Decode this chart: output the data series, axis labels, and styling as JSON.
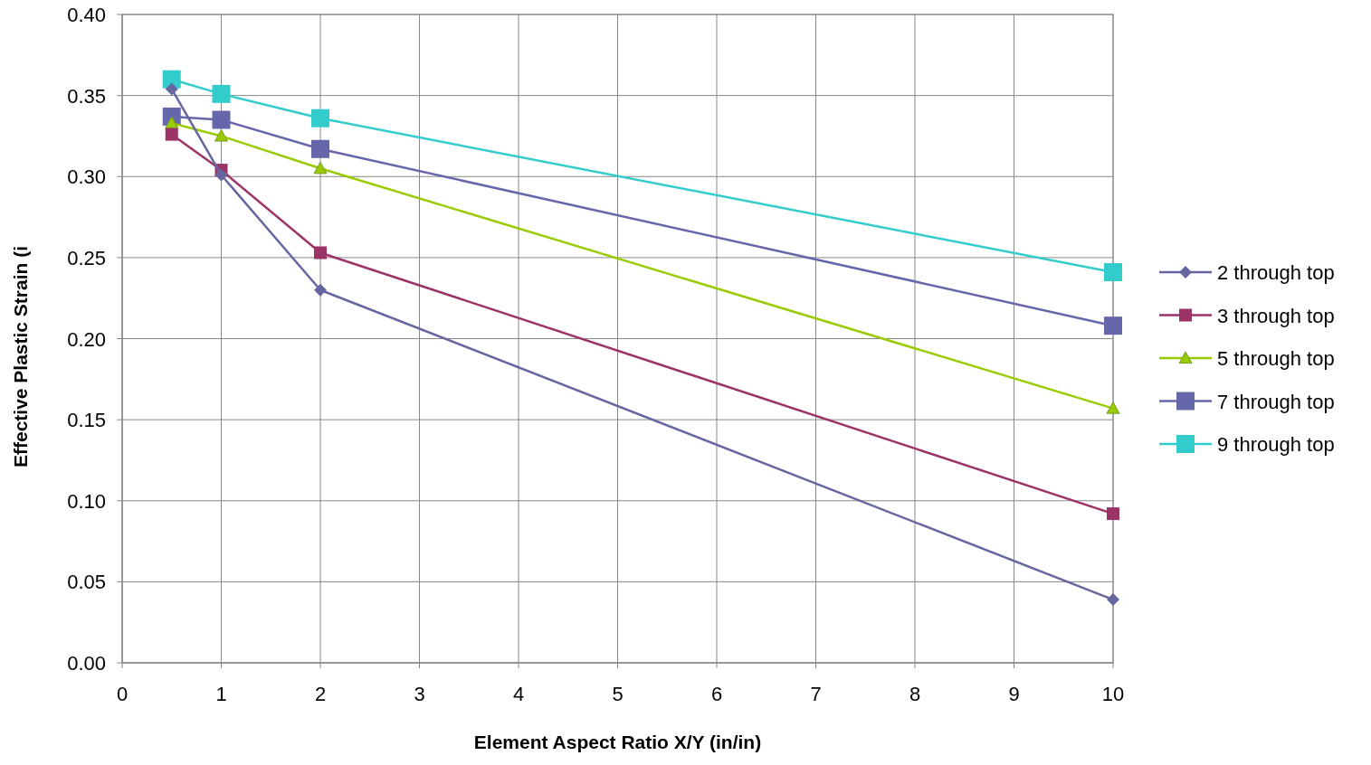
{
  "chart_data": {
    "type": "line",
    "xlabel": "Element Aspect Ratio X/Y (in/in)",
    "ylabel": "Effective Plastic Strain (i",
    "x": [
      0.5,
      1,
      2,
      10
    ],
    "xlim": [
      0,
      10
    ],
    "xticks": [
      0,
      1,
      2,
      3,
      4,
      5,
      6,
      7,
      8,
      9,
      10
    ],
    "ylim": [
      0,
      0.4
    ],
    "yticks": [
      {
        "value": 0,
        "label": "0.00"
      },
      {
        "value": 0.05,
        "label": "0.05"
      },
      {
        "value": 0.1,
        "label": "0.10"
      },
      {
        "value": 0.15,
        "label": "0.15"
      },
      {
        "value": 0.2,
        "label": "0.20"
      },
      {
        "value": 0.25,
        "label": "0.25"
      },
      {
        "value": 0.3,
        "label": "0.30"
      },
      {
        "value": 0.35,
        "label": "0.35"
      },
      {
        "value": 0.4,
        "label": "0.40"
      }
    ],
    "grid": true,
    "legend": "right",
    "series": [
      {
        "name": "2 through top",
        "color": "#6667a0",
        "marker": "diamond",
        "values": [
          0.354,
          0.301,
          0.23,
          0.039
        ]
      },
      {
        "name": "3 through top",
        "color": "#9b3366",
        "marker": "square",
        "values": [
          0.326,
          0.304,
          0.253,
          0.092
        ]
      },
      {
        "name": "5 through top",
        "color": "#99cc00",
        "marker": "triangle",
        "values": [
          0.333,
          0.325,
          0.305,
          0.157
        ]
      },
      {
        "name": "7 through top",
        "color": "#6667aa",
        "marker": "square",
        "values": [
          0.337,
          0.335,
          0.317,
          0.208
        ]
      },
      {
        "name": "9 through top",
        "color": "#33cccc",
        "marker": "square",
        "values": [
          0.36,
          0.351,
          0.336,
          0.241
        ]
      }
    ]
  }
}
